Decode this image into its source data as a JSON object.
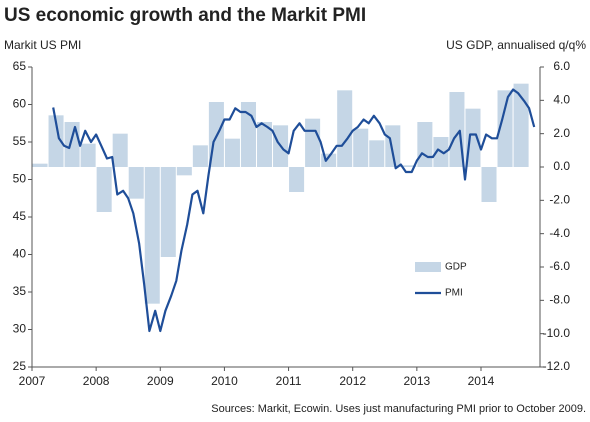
{
  "chart_data": {
    "type": "bar+line",
    "title": "US economic growth and the Markit PMI",
    "ylabel": "Markit US PMI",
    "y2label": "US GDP, annualised q/q%",
    "source": "Sources: Markit, Ecowin. Uses just manufacturing PMI prior to October 2009.",
    "xlim": [
      2007,
      2014.92
    ],
    "xticks": [
      2007,
      2008,
      2009,
      2010,
      2011,
      2012,
      2013,
      2014
    ],
    "ylim": [
      25,
      65
    ],
    "yticks": [
      25,
      30,
      35,
      40,
      45,
      50,
      55,
      60,
      65
    ],
    "y2lim": [
      -12,
      6
    ],
    "y2ticks": [
      {
        "value": -12,
        "label": "-12.0"
      },
      {
        "value": -10,
        "label": "-10.0"
      },
      {
        "value": -8,
        "label": "-8.0"
      },
      {
        "value": -6,
        "label": "-6.0"
      },
      {
        "value": -4,
        "label": "-4.0"
      },
      {
        "value": -2,
        "label": "-2.0"
      },
      {
        "value": 0,
        "label": "0.0"
      },
      {
        "value": 2,
        "label": "2.0"
      },
      {
        "value": 4,
        "label": "4.0"
      },
      {
        "value": 6,
        "label": "6.0"
      }
    ],
    "legend": "right",
    "series": [
      {
        "name": "GDP",
        "type": "bar",
        "axis": "y2",
        "color": "#c5d6e6",
        "x": [
          2007,
          2007.25,
          2007.5,
          2007.75,
          2008,
          2008.25,
          2008.5,
          2008.75,
          2009,
          2009.25,
          2009.5,
          2009.75,
          2010,
          2010.25,
          2010.5,
          2010.75,
          2011,
          2011.25,
          2011.5,
          2011.75,
          2012,
          2012.25,
          2012.5,
          2012.75,
          2013,
          2013.25,
          2013.5,
          2013.75,
          2014,
          2014.25,
          2014.5
        ],
        "values": [
          0.2,
          3.1,
          2.7,
          1.4,
          -2.7,
          2.0,
          -1.9,
          -8.2,
          -5.4,
          -0.5,
          1.3,
          3.9,
          1.7,
          3.9,
          2.7,
          2.5,
          -1.5,
          2.9,
          0.8,
          4.6,
          2.3,
          1.6,
          2.5,
          0.1,
          2.7,
          1.8,
          4.5,
          3.5,
          -2.1,
          4.6,
          5.0
        ]
      },
      {
        "name": "PMI",
        "type": "line",
        "axis": "y",
        "color": "#1f4e99",
        "x": [
          2007.33,
          2007.42,
          2007.5,
          2007.58,
          2007.67,
          2007.75,
          2007.83,
          2007.92,
          2008,
          2008.08,
          2008.17,
          2008.25,
          2008.33,
          2008.42,
          2008.5,
          2008.58,
          2008.67,
          2008.75,
          2008.83,
          2008.92,
          2009,
          2009.08,
          2009.17,
          2009.25,
          2009.33,
          2009.42,
          2009.5,
          2009.58,
          2009.67,
          2009.75,
          2009.83,
          2009.92,
          2010,
          2010.08,
          2010.17,
          2010.25,
          2010.33,
          2010.42,
          2010.5,
          2010.58,
          2010.67,
          2010.75,
          2010.83,
          2010.92,
          2011,
          2011.08,
          2011.17,
          2011.25,
          2011.33,
          2011.42,
          2011.5,
          2011.58,
          2011.67,
          2011.75,
          2011.83,
          2011.92,
          2012,
          2012.08,
          2012.17,
          2012.25,
          2012.33,
          2012.42,
          2012.5,
          2012.58,
          2012.67,
          2012.75,
          2012.83,
          2012.92,
          2013,
          2013.08,
          2013.17,
          2013.25,
          2013.33,
          2013.42,
          2013.5,
          2013.58,
          2013.67,
          2013.75,
          2013.83,
          2013.92,
          2014,
          2014.08,
          2014.17,
          2014.25,
          2014.33,
          2014.42,
          2014.5,
          2014.58,
          2014.67,
          2014.75,
          2014.83
        ],
        "values": [
          59.6,
          55.5,
          54.5,
          54.2,
          57.0,
          54.5,
          56.5,
          55.0,
          56.0,
          54.5,
          52.8,
          53.0,
          48.0,
          48.5,
          47.5,
          45.5,
          41.5,
          36.0,
          29.8,
          32.5,
          29.8,
          32.5,
          34.5,
          36.5,
          40.5,
          44.0,
          48.0,
          48.5,
          45.5,
          50.5,
          55.0,
          56.5,
          58.0,
          58.0,
          59.5,
          59.0,
          59.0,
          58.5,
          57.0,
          57.5,
          57.0,
          56.5,
          55.0,
          54.0,
          53.5,
          56.5,
          57.5,
          56.5,
          56.5,
          56.5,
          55.0,
          52.5,
          53.5,
          54.5,
          54.5,
          55.5,
          56.5,
          57.0,
          58.0,
          57.5,
          58.5,
          57.5,
          56.0,
          55.5,
          51.5,
          52.0,
          51.0,
          51.0,
          52.5,
          53.5,
          53.0,
          53.0,
          54.0,
          53.5,
          54.0,
          55.5,
          56.5,
          50.0,
          56.0,
          56.0,
          54.0,
          56.0,
          55.5,
          55.5,
          58.0,
          61.0,
          62.0,
          61.5,
          60.5,
          59.5,
          57.0
        ]
      }
    ]
  }
}
